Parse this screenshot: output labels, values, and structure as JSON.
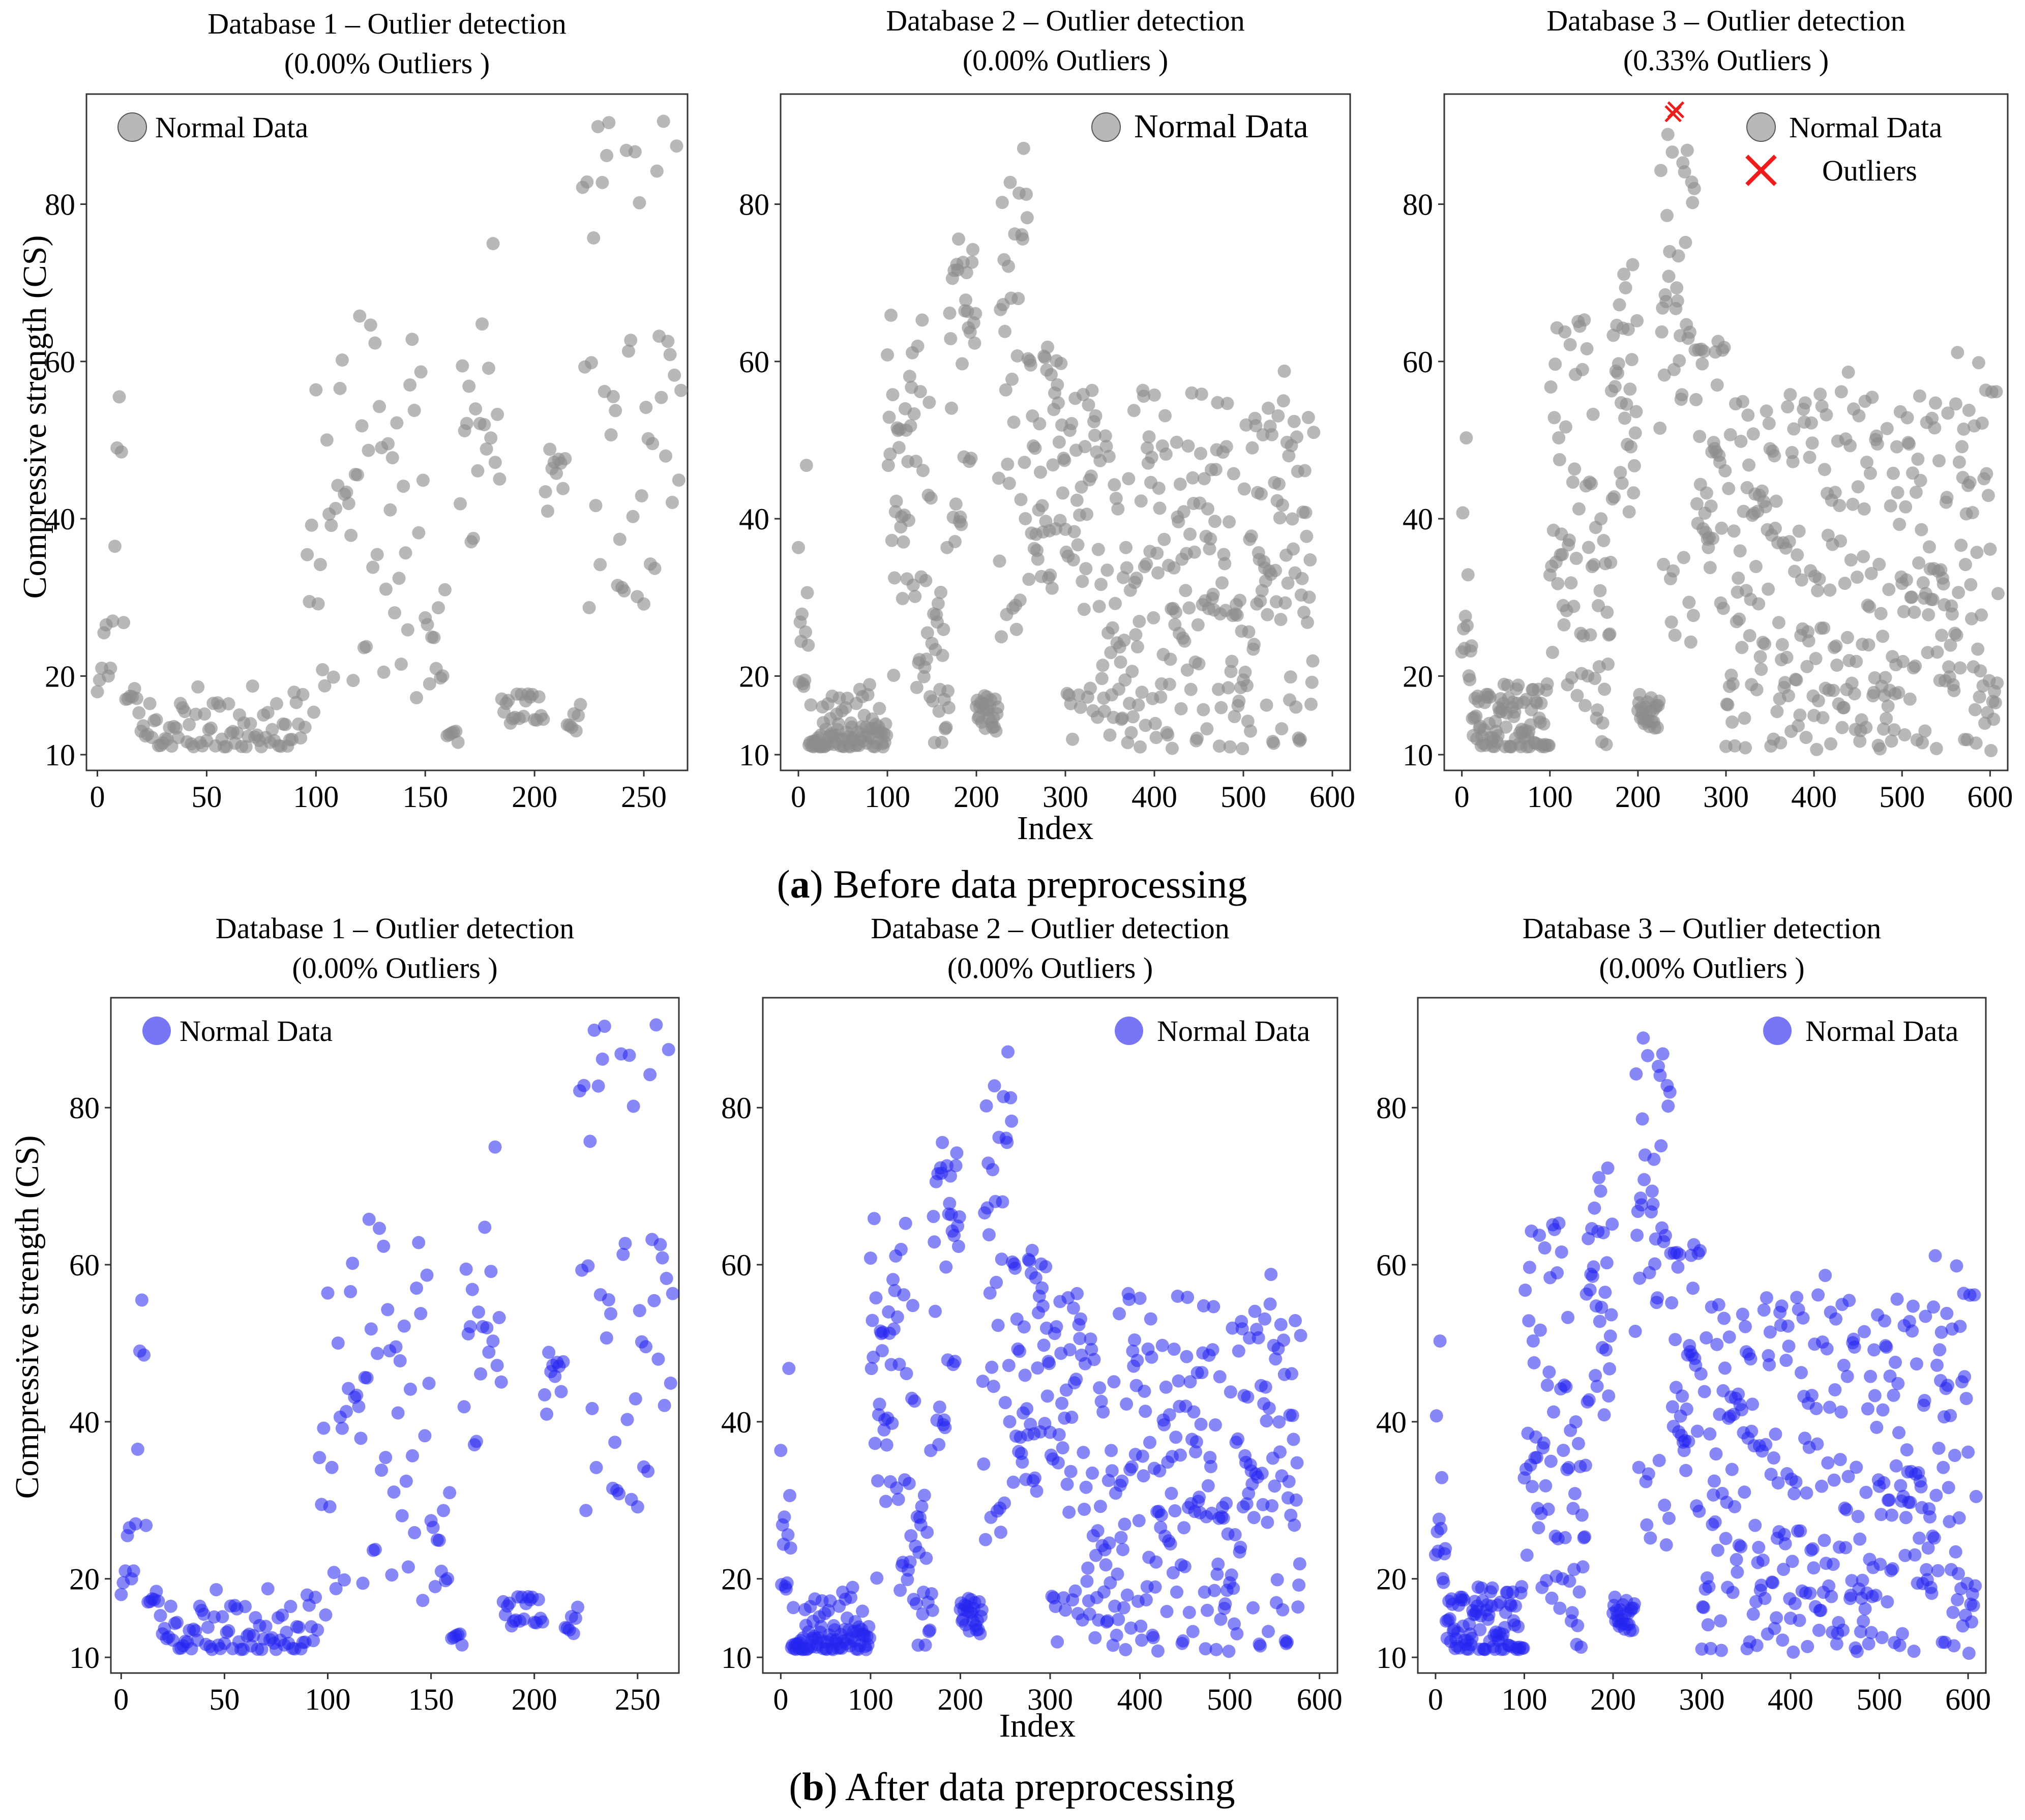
{
  "figure": {
    "caption_a": {
      "letter": "a",
      "text": " Before data preprocessing"
    },
    "caption_b": {
      "letter": "b",
      "text": " After data preprocessing"
    },
    "y_label": "Compressive strength (CS)",
    "x_label": "Index",
    "colors": {
      "normal_gray": "#8c8c8c",
      "normal_blue": "#2424f0",
      "outlier": "#ee1d1d",
      "axis": "#333333"
    }
  },
  "chart_data": [
    {
      "id": "a1",
      "type": "scatter",
      "title": "Database 1 – Outlier detection",
      "subtitle": "(0.00% Outliers )",
      "xlabel": "",
      "ylabel": "Compressive strength (CS)",
      "xlim": [
        -5,
        270
      ],
      "ylim": [
        8,
        94
      ],
      "xticks": [
        0,
        50,
        100,
        150,
        200,
        250
      ],
      "yticks": [
        10,
        20,
        40,
        60,
        80
      ],
      "legend": [
        "Normal Data"
      ],
      "legend_position": "top-left",
      "n_points": 268,
      "outliers": []
    },
    {
      "id": "a2",
      "type": "scatter",
      "title": "Database 2 – Outlier detection",
      "subtitle": "(0.00% Outliers )",
      "xlabel": "Index",
      "ylabel": "",
      "xlim": [
        -20,
        620
      ],
      "ylim": [
        8,
        94
      ],
      "xticks": [
        0,
        100,
        200,
        300,
        400,
        500,
        600
      ],
      "yticks": [
        10,
        20,
        40,
        60,
        80
      ],
      "legend": [
        "Normal Data"
      ],
      "legend_position": "top-right",
      "n_points": 580,
      "outliers": []
    },
    {
      "id": "a3",
      "type": "scatter",
      "title": "Database 3 – Outlier detection",
      "subtitle": "(0.33% Outliers )",
      "xlabel": "",
      "ylabel": "",
      "xlim": [
        -20,
        620
      ],
      "ylim": [
        8,
        94
      ],
      "xticks": [
        0,
        100,
        200,
        300,
        400,
        500,
        600
      ],
      "yticks": [
        10,
        20,
        40,
        60,
        80
      ],
      "legend": [
        "Normal Data",
        "Outliers"
      ],
      "legend_position": "top-right",
      "n_points": 610,
      "outliers": [
        {
          "x": 240,
          "y": 91.5
        },
        {
          "x": 243,
          "y": 92.0
        }
      ]
    },
    {
      "id": "b1",
      "type": "scatter",
      "title": "Database 1 – Outlier detection",
      "subtitle": "(0.00% Outliers )",
      "xlabel": "",
      "ylabel": "Compressive strength (CS)",
      "xlim": [
        -5,
        270
      ],
      "ylim": [
        8,
        94
      ],
      "xticks": [
        0,
        50,
        100,
        150,
        200,
        250
      ],
      "yticks": [
        10,
        20,
        40,
        60,
        80
      ],
      "legend": [
        "Normal Data"
      ],
      "legend_position": "top-left",
      "n_points": 268,
      "outliers": []
    },
    {
      "id": "b2",
      "type": "scatter",
      "title": "Database 2 – Outlier detection",
      "subtitle": "(0.00% Outliers )",
      "xlabel": "Index",
      "ylabel": "",
      "xlim": [
        -20,
        620
      ],
      "ylim": [
        8,
        94
      ],
      "xticks": [
        0,
        100,
        200,
        300,
        400,
        500,
        600
      ],
      "yticks": [
        10,
        20,
        40,
        60,
        80
      ],
      "legend": [
        "Normal Data"
      ],
      "legend_position": "top-right",
      "n_points": 580,
      "outliers": []
    },
    {
      "id": "b3",
      "type": "scatter",
      "title": "Database 3 – Outlier detection",
      "subtitle": "(0.00% Outliers )",
      "xlabel": "",
      "ylabel": "",
      "xlim": [
        -20,
        620
      ],
      "ylim": [
        8,
        94
      ],
      "xticks": [
        0,
        100,
        200,
        300,
        400,
        500,
        600
      ],
      "yticks": [
        10,
        20,
        40,
        60,
        80
      ],
      "legend": [
        "Normal Data"
      ],
      "legend_position": "top-right",
      "n_points": 610,
      "outliers": []
    }
  ]
}
